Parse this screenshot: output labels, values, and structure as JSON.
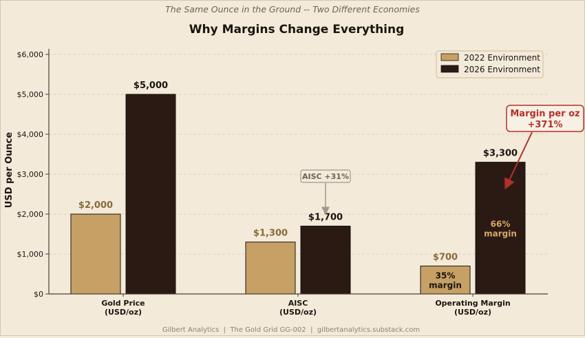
{
  "chart_data": {
    "type": "bar",
    "subtitle": "The Same Ounce in the Ground  --  Two Different Economies",
    "title": "Why Margins Change Everything",
    "ylabel": "USD per Ounce",
    "xlabel": "",
    "ylim": [
      0,
      6000
    ],
    "yticks": [
      0,
      1000,
      2000,
      3000,
      4000,
      5000,
      6000
    ],
    "ytick_labels": [
      "$0",
      "$1,000",
      "$2,000",
      "$3,000",
      "$4,000",
      "$5,000",
      "$6,000"
    ],
    "grid": "horizontal dashed",
    "legend_position": "top-right",
    "categories": [
      {
        "line1": "Gold Price",
        "line2": "(USD/oz)"
      },
      {
        "line1": "AISC",
        "line2": "(USD/oz)"
      },
      {
        "line1": "Operating Margin",
        "line2": "(USD/oz)"
      }
    ],
    "series": [
      {
        "name": "2022 Environment",
        "color": "#c6a064",
        "label_color": "#8a6a3c",
        "values": [
          2000,
          1300,
          700
        ],
        "value_labels": [
          "$2,000",
          "$1,300",
          "$700"
        ]
      },
      {
        "name": "2026 Environment",
        "color": "#2b1a14",
        "label_color": "#1a1410",
        "values": [
          5000,
          1700,
          3300
        ],
        "value_labels": [
          "$5,000",
          "$1,700",
          "$3,300"
        ]
      }
    ],
    "inner_labels": [
      {
        "series": 0,
        "category": 2,
        "line1": "35%",
        "line2": "margin",
        "color": "#1a1410"
      },
      {
        "series": 1,
        "category": 2,
        "line1": "66%",
        "line2": "margin",
        "color": "#d4a86a"
      }
    ],
    "annotations": [
      {
        "text": "AISC +31%",
        "color": "#6b6258",
        "arrow_color": "#a09890",
        "target_category": 1,
        "target_value": 1700
      },
      {
        "line1": "Margin per oz",
        "line2": "+371%",
        "color": "#b3302a",
        "target_category": 2,
        "target_value": 2600
      }
    ],
    "footer": "Gilbert Analytics  |  The Gold Grid GG-002  |  gilbertanalytics.substack.com"
  }
}
